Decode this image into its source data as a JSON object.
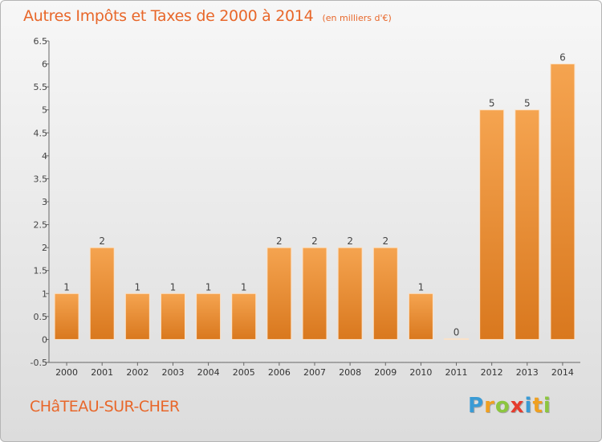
{
  "chart_data": {
    "type": "bar",
    "title": "Autres Impôts et Taxes de 2000 à 2014",
    "unit_note": "(en milliers d'€)",
    "categories": [
      "2000",
      "2001",
      "2002",
      "2003",
      "2004",
      "2005",
      "2006",
      "2007",
      "2008",
      "2009",
      "2010",
      "2011",
      "2012",
      "2013",
      "2014"
    ],
    "values": [
      1,
      2,
      1,
      1,
      1,
      1,
      2,
      2,
      2,
      2,
      1,
      0,
      5,
      5,
      6
    ],
    "data_labels": [
      "1",
      "2",
      "1",
      "1",
      "1",
      "1",
      "2",
      "2",
      "2",
      "2",
      "1",
      "0",
      "5",
      "5",
      "6"
    ],
    "ylim": [
      -0.5,
      6.5
    ],
    "yticks": [
      "-0.5",
      "0",
      "0.5",
      "1",
      "1.5",
      "2",
      "2.5",
      "3",
      "3.5",
      "4",
      "4.5",
      "5",
      "5.5",
      "6",
      "6.5"
    ],
    "grid": false,
    "colors": {
      "bar_light": "#f5a450",
      "bar_dark": "#d9781e",
      "accent": "#e8672a"
    }
  },
  "footer": {
    "commune": "CHâTEAU-SUR-CHER",
    "brand_letters": [
      {
        "ch": "P",
        "color": "#3a9bd5"
      },
      {
        "ch": "r",
        "color": "#f0a020"
      },
      {
        "ch": "o",
        "color": "#8cc63f"
      },
      {
        "ch": "x",
        "color": "#e53c2e"
      },
      {
        "ch": "i",
        "color": "#3a9bd5"
      },
      {
        "ch": "t",
        "color": "#f0a020"
      },
      {
        "ch": "i",
        "color": "#8cc63f"
      }
    ]
  }
}
